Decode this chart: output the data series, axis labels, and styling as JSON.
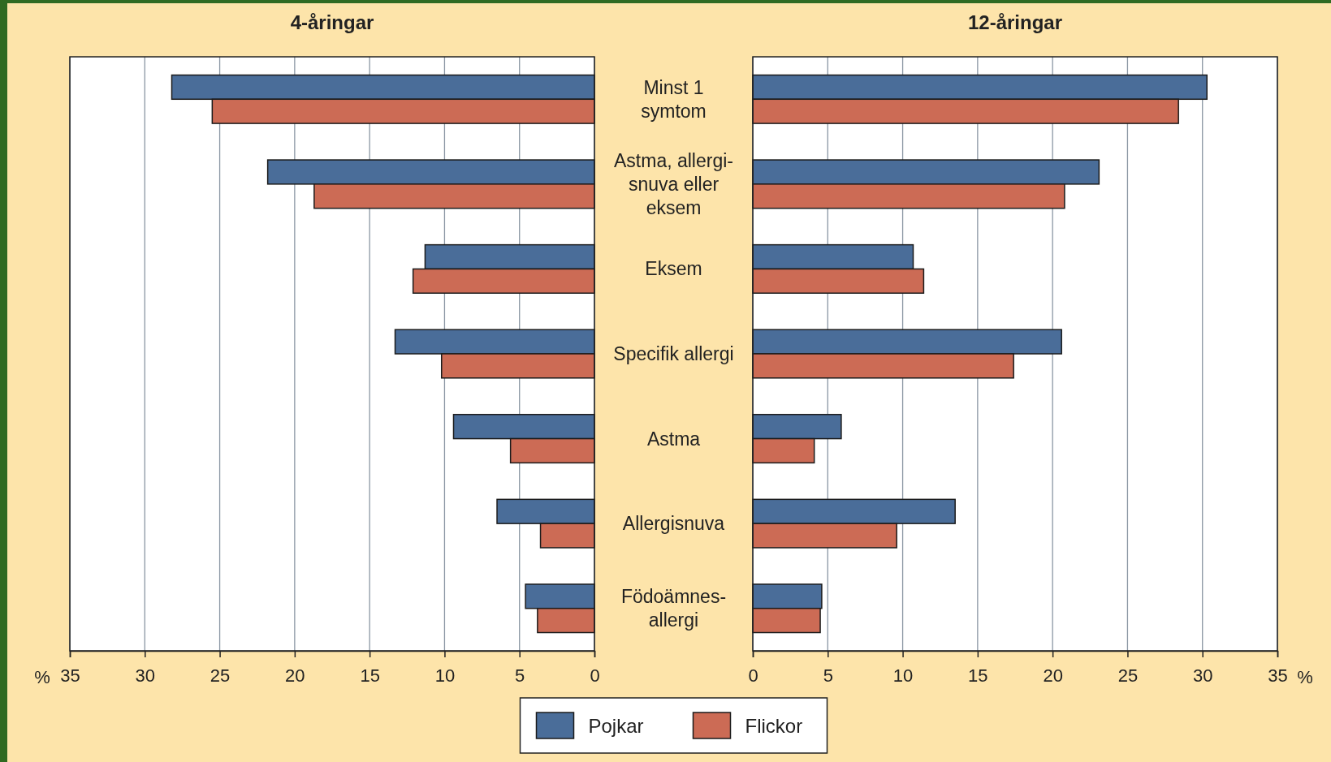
{
  "chart_data": [
    {
      "type": "bar",
      "orientation": "horizontal",
      "title": "4-åringar",
      "xlabel": "%",
      "categories": [
        "Minst 1\nsymtom",
        "Astma, allergi-\nsnuva eller\neksem",
        "Eksem",
        "Specifik allergi",
        "Astma",
        "Allergisnuva",
        "Födoämnes-\nallergi"
      ],
      "series": [
        {
          "name": "Pojkar",
          "color": "#4a6d99",
          "values": [
            28.2,
            21.8,
            11.3,
            13.3,
            9.4,
            6.5,
            4.6
          ]
        },
        {
          "name": "Flickor",
          "color": "#cc6b55",
          "values": [
            25.5,
            18.7,
            12.1,
            10.2,
            5.6,
            3.6,
            3.8
          ]
        }
      ],
      "xlim": [
        35,
        0
      ],
      "xticks": [
        35,
        30,
        25,
        20,
        15,
        10,
        5,
        0
      ],
      "grid": "x",
      "legend": "bottom"
    },
    {
      "type": "bar",
      "orientation": "horizontal",
      "title": "12-åringar",
      "xlabel": "%",
      "categories": [
        null,
        null,
        null,
        null,
        null,
        null,
        null
      ],
      "series": [
        {
          "color": "#4a6d99",
          "values": [
            30.3,
            23.1,
            10.7,
            20.6,
            5.9,
            13.5,
            4.6
          ]
        },
        {
          "color": "#cc6b55",
          "values": [
            28.4,
            20.8,
            11.4,
            17.4,
            4.1,
            9.6,
            4.5
          ]
        }
      ],
      "xlim": [
        0,
        35
      ],
      "xticks": [
        0,
        5,
        10,
        15,
        20,
        25,
        30,
        35
      ],
      "grid": "x",
      "tick_labels": "x"
    }
  ]
}
